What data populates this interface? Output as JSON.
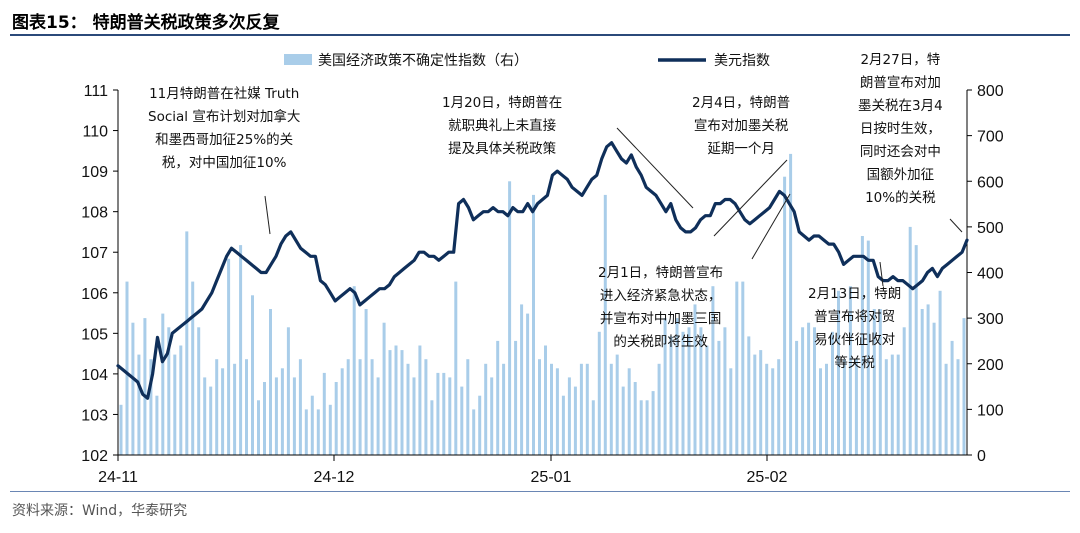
{
  "header": {
    "title": "图表15：  特朗普关税政策多次反复"
  },
  "footer": {
    "source": "资料来源：Wind，华泰研究"
  },
  "colors": {
    "bar": "#a9cde9",
    "line": "#0f2f5a",
    "rule": "#2b4a7a",
    "text": "#111111"
  },
  "legend": {
    "bar_label": "美国经济政策不确定性指数（右）",
    "line_label": "美元指数"
  },
  "annotations": [
    {
      "lines": [
        "11月特朗普在社媒 Truth",
        "Social 宣布计划对加拿大",
        "和墨西哥加征25%的关",
        "税，对中国加征10%"
      ]
    },
    {
      "lines": [
        "1月20日，特朗普在",
        "就职典礼上未直接",
        "提及具体关税政策"
      ]
    },
    {
      "lines": [
        "2月4日，特朗普",
        "宣布对加墨关税",
        "延期一个月"
      ]
    },
    {
      "lines": [
        "2月27日，特",
        "朗普宣布对加",
        "墨关税在3月4",
        "日按时生效，",
        "同时还会对中",
        "国额外加征",
        "10%的关税"
      ]
    },
    {
      "lines": [
        "2月1日，特朗普宣布",
        "进入经济紧急状态，",
        "并宣布对中加墨三国",
        "的关税即将生效"
      ]
    },
    {
      "lines": [
        "2月13日，特朗",
        "普宣布将对贸",
        "易伙伴征收对",
        "等关税"
      ]
    }
  ],
  "chart_data": {
    "type": "bar+line",
    "x_tick_labels": [
      "24-11",
      "24-12",
      "25-01",
      "25-02"
    ],
    "y_left": {
      "min": 102,
      "max": 111,
      "ticks": [
        102,
        103,
        104,
        105,
        106,
        107,
        108,
        109,
        110,
        111
      ]
    },
    "y_right": {
      "min": 0,
      "max": 800,
      "ticks": [
        0,
        100,
        200,
        300,
        400,
        500,
        600,
        700,
        800
      ]
    },
    "series": [
      {
        "name": "美国经济政策不确定性指数（右）",
        "type": "bar",
        "axis": "right",
        "values": [
          110,
          380,
          290,
          220,
          300,
          210,
          130,
          310,
          280,
          220,
          240,
          490,
          380,
          280,
          170,
          150,
          210,
          190,
          430,
          200,
          460,
          210,
          350,
          120,
          160,
          320,
          170,
          190,
          280,
          170,
          210,
          100,
          130,
          100,
          180,
          110,
          160,
          190,
          210,
          370,
          210,
          320,
          210,
          170,
          290,
          230,
          240,
          230,
          200,
          170,
          240,
          210,
          120,
          180,
          180,
          170,
          380,
          150,
          210,
          100,
          130,
          200,
          170,
          250,
          200,
          600,
          250,
          330,
          310,
          570,
          210,
          240,
          200,
          190,
          130,
          170,
          150,
          200,
          200,
          120,
          270,
          570,
          200,
          220,
          150,
          190,
          160,
          120,
          120,
          140,
          200,
          300,
          260,
          300,
          270,
          280,
          330,
          280,
          240,
          370,
          250,
          280,
          190,
          380,
          380,
          260,
          220,
          230,
          200,
          190,
          210,
          610,
          660,
          250,
          280,
          290,
          280,
          190,
          200,
          270,
          360,
          210,
          370,
          210,
          480,
          470,
          320,
          320,
          210,
          220,
          220,
          280,
          500,
          460,
          320,
          330,
          290,
          360,
          200,
          250,
          210,
          300
        ]
      },
      {
        "name": "美元指数",
        "type": "line",
        "axis": "left",
        "values": [
          104.2,
          104.1,
          104.0,
          103.9,
          103.8,
          103.5,
          103.4,
          104.0,
          104.9,
          104.3,
          104.5,
          105.0,
          105.1,
          105.2,
          105.3,
          105.4,
          105.5,
          105.6,
          105.8,
          106.0,
          106.3,
          106.6,
          106.9,
          107.1,
          107.0,
          106.9,
          106.8,
          106.7,
          106.6,
          106.5,
          106.5,
          106.7,
          106.9,
          107.2,
          107.4,
          107.5,
          107.3,
          107.1,
          107.0,
          106.9,
          106.9,
          106.3,
          106.2,
          106.0,
          105.8,
          105.9,
          106.0,
          106.1,
          106.0,
          105.7,
          105.8,
          105.9,
          106.0,
          106.1,
          106.1,
          106.2,
          106.4,
          106.5,
          106.6,
          106.7,
          106.8,
          107.0,
          107.0,
          106.9,
          106.9,
          106.8,
          106.9,
          107.0,
          107.0,
          108.2,
          108.3,
          108.1,
          107.8,
          107.9,
          108.0,
          108.0,
          108.1,
          108.0,
          108.0,
          107.9,
          108.1,
          108.0,
          108.0,
          108.2,
          108.0,
          108.2,
          108.3,
          108.4,
          108.9,
          109.0,
          108.9,
          108.8,
          108.6,
          108.5,
          108.4,
          108.6,
          108.8,
          108.9,
          109.3,
          109.6,
          109.7,
          109.5,
          109.3,
          109.2,
          109.4,
          109.1,
          108.9,
          108.6,
          108.5,
          108.4,
          108.2,
          108.0,
          108.2,
          107.8,
          107.6,
          107.5,
          107.5,
          107.6,
          107.8,
          107.9,
          107.9,
          108.2,
          108.2,
          108.3,
          108.3,
          108.2,
          108.0,
          107.8,
          107.7,
          107.8,
          107.9,
          108.0,
          108.1,
          108.3,
          108.5,
          108.4,
          108.2,
          108.0,
          107.5,
          107.4,
          107.3,
          107.4,
          107.4,
          107.3,
          107.2,
          107.2,
          107.0,
          106.7,
          106.8,
          106.9,
          106.9,
          106.9,
          106.8,
          106.8,
          106.4,
          106.3,
          106.3,
          106.4,
          106.3,
          106.3,
          106.2,
          106.1,
          106.2,
          106.3,
          106.5,
          106.6,
          106.4,
          106.6,
          106.7,
          106.8,
          106.9,
          107.0,
          107.3
        ]
      }
    ]
  }
}
